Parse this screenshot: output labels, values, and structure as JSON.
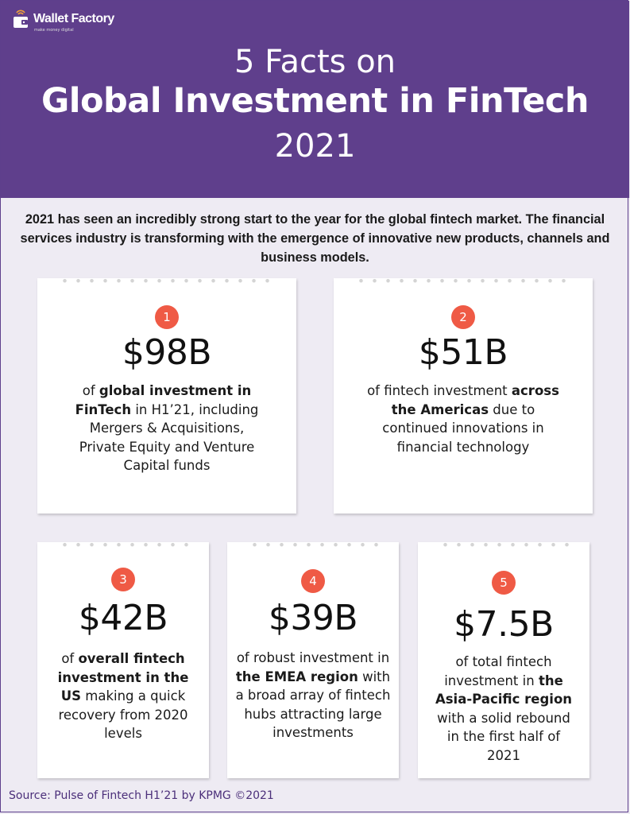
{
  "header": {
    "logo_name": "Wallet Factory",
    "logo_tagline": "make money digital",
    "title_line1": "5 Facts on",
    "title_line2": "Global Investment in FinTech",
    "title_line3": "2021"
  },
  "intro": "2021 has seen an incredibly strong start to the year for the global fintech market. The financial services industry is transforming with the emergence of innovative new products, channels and business models.",
  "facts": [
    {
      "number": "1",
      "amount": "$98B",
      "desc": [
        {
          "text": "of ",
          "bold": false
        },
        {
          "text": "global investment in FinTech",
          "bold": true
        },
        {
          "text": " in H1’21, including Mergers & Acquisitions, Private Equity and Venture Capital funds",
          "bold": false
        }
      ]
    },
    {
      "number": "2",
      "amount": "$51B",
      "desc": [
        {
          "text": "of fintech investment ",
          "bold": false
        },
        {
          "text": "across the Americas",
          "bold": true
        },
        {
          "text": " due to continued innovations in financial technology",
          "bold": false
        }
      ]
    },
    {
      "number": "3",
      "amount": "$42B",
      "desc": [
        {
          "text": "of ",
          "bold": false
        },
        {
          "text": "overall fintech investment in the US",
          "bold": true
        },
        {
          "text": " making a quick recovery from 2020 levels",
          "bold": false
        }
      ]
    },
    {
      "number": "4",
      "amount": "$39B",
      "desc": [
        {
          "text": "of robust investment in ",
          "bold": false
        },
        {
          "text": "the EMEA region",
          "bold": true
        },
        {
          "text": " with a broad array of fintech hubs attracting large investments",
          "bold": false
        }
      ]
    },
    {
      "number": "5",
      "amount": "$7.5B",
      "desc": [
        {
          "text": "of total fintech investment in ",
          "bold": false
        },
        {
          "text": "the Asia-Pacific region",
          "bold": true
        },
        {
          "text": " with a solid rebound in the first half of 2021",
          "bold": false
        }
      ]
    }
  ],
  "source": "Source: Pulse of Fintech H1’21 by KPMG ©2021",
  "colors": {
    "header_bg": "#5f3f8c",
    "page_bg": "#eeebf3",
    "badge": "#ef5a45",
    "source_text": "#4b2f7a"
  }
}
